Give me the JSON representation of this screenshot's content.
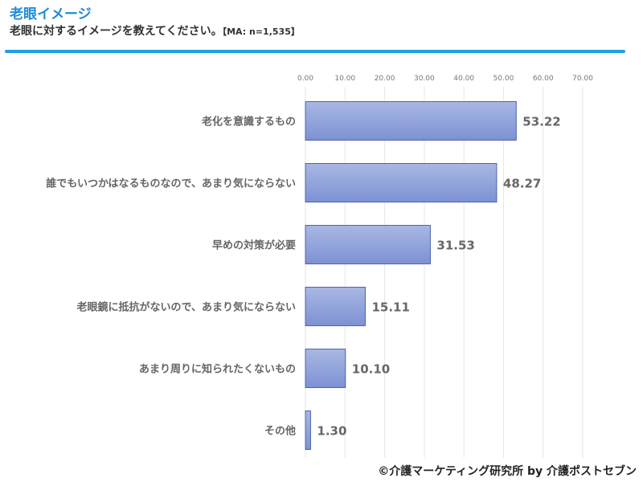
{
  "header": {
    "title": "老眼イメージ",
    "subtitle": "老眼に対するイメージを教えてください。",
    "subtitle_note": "【MA: n=1,535】"
  },
  "credit": "©介護マーケティング研究所 by 介護ポストセブン",
  "colors": {
    "title": "#1f8ad8",
    "rule": "#1ea0e6",
    "bar_fill_top": "#a9b7e3",
    "bar_fill_bottom": "#7d92d4",
    "bar_stroke": "#4a64b0",
    "grid": "#e6e6e6",
    "label_text": "#666666"
  },
  "chart_data": {
    "type": "bar",
    "orientation": "horizontal",
    "categories": [
      "老化を意識するもの",
      "誰でもいつかはなるものなので、あまり気にならない",
      "早めの対策が必要",
      "老眼鏡に抵抗がないので、あまり気にならない",
      "あまり周りに知られたくないもの",
      "その他"
    ],
    "values": [
      53.22,
      48.27,
      31.53,
      15.11,
      10.1,
      1.3
    ],
    "value_labels": [
      "53.22",
      "48.27",
      "31.53",
      "15.11",
      "10.10",
      "1.30"
    ],
    "xticks": [
      "0.00",
      "10.00",
      "20.00",
      "30.00",
      "40.00",
      "50.00",
      "60.00",
      "70.00"
    ],
    "xlim": [
      0,
      70
    ],
    "xaxis_position": "top",
    "grid": true,
    "legend": false
  }
}
